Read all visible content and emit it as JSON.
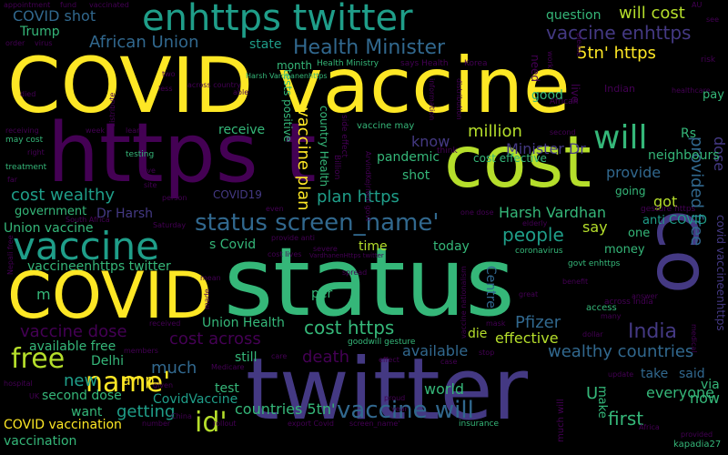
{
  "wordcloud": {
    "colors": {
      "yellow": "#fde725",
      "lime": "#b5de2b",
      "green": "#35b779",
      "teal": "#1f9e89",
      "blue": "#31688e",
      "indigo": "#443983",
      "purple": "#440154",
      "background": "#000000"
    },
    "words": [
      {
        "text": "COVID vaccine",
        "color": "yellow"
      },
      {
        "text": "https t",
        "color": "purple"
      },
      {
        "text": "status",
        "color": "green"
      },
      {
        "text": "twitter",
        "color": "indigo"
      },
      {
        "text": "cost",
        "color": "lime"
      },
      {
        "text": "co",
        "color": "indigo"
      },
      {
        "text": "COVID",
        "color": "yellow"
      },
      {
        "text": "enhttps twitter",
        "color": "teal"
      },
      {
        "text": "vaccine",
        "color": "teal"
      },
      {
        "text": "free",
        "color": "lime"
      },
      {
        "text": "will",
        "color": "green"
      },
      {
        "text": "name'",
        "color": "yellow"
      },
      {
        "text": "id'",
        "color": "lime"
      },
      {
        "text": "status screen_name'",
        "color": "blue"
      },
      {
        "text": "vaccine will",
        "color": "blue"
      },
      {
        "text": "Health Minister",
        "color": "blue"
      },
      {
        "text": "vaccine enhttps",
        "color": "indigo"
      },
      {
        "text": "5tn' https",
        "color": "yellow"
      },
      {
        "text": "will cost",
        "color": "lime"
      },
      {
        "text": "African Union",
        "color": "blue"
      },
      {
        "text": "COVID shot",
        "color": "blue"
      },
      {
        "text": "cost wealthy",
        "color": "teal"
      },
      {
        "text": "plan https",
        "color": "teal"
      },
      {
        "text": "vaccine plan",
        "color": "yellow"
      },
      {
        "text": "million",
        "color": "lime"
      },
      {
        "text": "know",
        "color": "indigo"
      },
      {
        "text": "Minister Dr",
        "color": "indigo"
      },
      {
        "text": "people",
        "color": "teal"
      },
      {
        "text": "India",
        "color": "indigo"
      },
      {
        "text": "cost https",
        "color": "green"
      },
      {
        "text": "cost across",
        "color": "purple"
      },
      {
        "text": "vaccine dose",
        "color": "purple"
      },
      {
        "text": "Pfizer",
        "color": "blue"
      },
      {
        "text": "wealthy countries",
        "color": "blue"
      },
      {
        "text": "countries 5tn'",
        "color": "green"
      },
      {
        "text": "getting",
        "color": "teal"
      },
      {
        "text": "death",
        "color": "purple"
      },
      {
        "text": "much",
        "color": "blue"
      },
      {
        "text": "new",
        "color": "teal"
      },
      {
        "text": "amp",
        "color": "yellow"
      },
      {
        "text": "provided free",
        "color": "blue"
      },
      {
        "text": "dose",
        "color": "indigo"
      },
      {
        "text": "covid vaccineenhttps",
        "color": "indigo"
      },
      {
        "text": "Union vaccine",
        "color": "green"
      },
      {
        "text": "cost effective",
        "color": "green"
      },
      {
        "text": "Harsh Vardhan",
        "color": "green"
      },
      {
        "text": "say",
        "color": "lime"
      },
      {
        "text": "got",
        "color": "lime"
      },
      {
        "text": "provide",
        "color": "blue"
      },
      {
        "text": "neighbours",
        "color": "green"
      },
      {
        "text": "Rs",
        "color": "green"
      },
      {
        "text": "anti COVID",
        "color": "teal"
      },
      {
        "text": "vaccineenhttps twitter",
        "color": "green"
      },
      {
        "text": "available free",
        "color": "green"
      },
      {
        "text": "Union Health",
        "color": "green"
      },
      {
        "text": "effective",
        "color": "lime"
      },
      {
        "text": "die",
        "color": "lime"
      },
      {
        "text": "available",
        "color": "blue"
      },
      {
        "text": "COVID vaccination",
        "color": "yellow"
      },
      {
        "text": "vaccination",
        "color": "green"
      },
      {
        "text": "second dose",
        "color": "green"
      },
      {
        "text": "CovidVaccine",
        "color": "teal"
      },
      {
        "text": "first",
        "color": "green"
      },
      {
        "text": "everyone",
        "color": "green"
      },
      {
        "text": "now",
        "color": "green"
      },
      {
        "text": "via",
        "color": "green"
      },
      {
        "text": "take",
        "color": "blue"
      },
      {
        "text": "said",
        "color": "blue"
      },
      {
        "text": "world",
        "color": "green"
      },
      {
        "text": "receive",
        "color": "green"
      },
      {
        "text": "pandemic",
        "color": "green"
      },
      {
        "text": "shot",
        "color": "green"
      },
      {
        "text": "month",
        "color": "green"
      },
      {
        "text": "question",
        "color": "green"
      },
      {
        "text": "Trump",
        "color": "green"
      },
      {
        "text": "state",
        "color": "teal"
      },
      {
        "text": "Dr Harsh",
        "color": "indigo"
      },
      {
        "text": "government",
        "color": "green"
      },
      {
        "text": "COVID19",
        "color": "indigo"
      },
      {
        "text": "s Covid",
        "color": "green"
      },
      {
        "text": "time",
        "color": "lime"
      },
      {
        "text": "today",
        "color": "green"
      },
      {
        "text": "per",
        "color": "green"
      },
      {
        "text": "money",
        "color": "green"
      },
      {
        "text": "one",
        "color": "green"
      },
      {
        "text": "Centre",
        "color": "blue"
      },
      {
        "text": "good",
        "color": "green"
      },
      {
        "text": "going",
        "color": "green"
      },
      {
        "text": "Delhi",
        "color": "green"
      },
      {
        "text": "test",
        "color": "green"
      },
      {
        "text": "still",
        "color": "green"
      },
      {
        "text": "want",
        "color": "green"
      },
      {
        "text": "U",
        "color": "green"
      },
      {
        "text": "make",
        "color": "green"
      },
      {
        "text": "kapadia27",
        "color": "green"
      },
      {
        "text": "m",
        "color": "green"
      },
      {
        "text": "appointment",
        "color": "purple"
      },
      {
        "text": "vaccinated",
        "color": "purple"
      },
      {
        "text": "fund",
        "color": "purple"
      },
      {
        "text": "order",
        "color": "purple"
      },
      {
        "text": "virus",
        "color": "purple"
      },
      {
        "text": "Health Ministry",
        "color": "green"
      },
      {
        "text": "says Health",
        "color": "purple"
      },
      {
        "text": "Korea",
        "color": "purple"
      },
      {
        "text": "Indian",
        "color": "purple"
      },
      {
        "text": "risk",
        "color": "purple"
      },
      {
        "text": "healthcare",
        "color": "purple"
      },
      {
        "text": "two",
        "color": "purple"
      },
      {
        "text": "less",
        "color": "purple"
      },
      {
        "text": "across country",
        "color": "purple"
      },
      {
        "text": "able",
        "color": "purple"
      },
      {
        "text": "Harsh Vardhanenhttps",
        "color": "green"
      },
      {
        "text": "tests positive",
        "color": "green"
      },
      {
        "text": "country Health",
        "color": "green"
      },
      {
        "text": "side effect",
        "color": "purple"
      },
      {
        "text": "Billion",
        "color": "purple"
      },
      {
        "text": "vaccine may",
        "color": "green"
      },
      {
        "text": "information",
        "color": "purple"
      },
      {
        "text": "distribution",
        "color": "purple"
      },
      {
        "text": "think",
        "color": "purple"
      },
      {
        "text": "second",
        "color": "purple"
      },
      {
        "text": "need",
        "color": "purple"
      },
      {
        "text": "live",
        "color": "purple"
      },
      {
        "text": "African",
        "color": "purple"
      },
      {
        "text": "gesture https",
        "color": "purple"
      },
      {
        "text": "pay",
        "color": "green"
      },
      {
        "text": "died",
        "color": "purple"
      },
      {
        "text": "distribute",
        "color": "purple"
      },
      {
        "text": "week",
        "color": "purple"
      },
      {
        "text": "learn",
        "color": "purple"
      },
      {
        "text": "receiving",
        "color": "purple"
      },
      {
        "text": "may cost",
        "color": "green"
      },
      {
        "text": "right",
        "color": "purple"
      },
      {
        "text": "testing",
        "color": "green"
      },
      {
        "text": "treatment",
        "color": "green"
      },
      {
        "text": "far",
        "color": "purple"
      },
      {
        "text": "give",
        "color": "purple"
      },
      {
        "text": "site",
        "color": "purple"
      },
      {
        "text": "person",
        "color": "purple"
      },
      {
        "text": "ArvindKejriwal govt",
        "color": "purple"
      },
      {
        "text": "one dose",
        "color": "purple"
      },
      {
        "text": "elderly",
        "color": "purple"
      },
      {
        "text": "even",
        "color": "purple"
      },
      {
        "text": "South Africa",
        "color": "purple"
      },
      {
        "text": "Saturday",
        "color": "purple"
      },
      {
        "text": "provide anti",
        "color": "purple"
      },
      {
        "text": "coronavirus",
        "color": "green"
      },
      {
        "text": "severe",
        "color": "purple"
      },
      {
        "text": "cost lives",
        "color": "purple"
      },
      {
        "text": "VardhanenHttps twitter",
        "color": "purple"
      },
      {
        "text": "govt enhttps",
        "color": "green"
      },
      {
        "text": "across India",
        "color": "purple"
      },
      {
        "text": "benefit",
        "color": "purple"
      },
      {
        "text": "Nepali free",
        "color": "purple"
      },
      {
        "text": "mean",
        "color": "purple"
      },
      {
        "text": "made",
        "color": "purple"
      },
      {
        "text": "spread",
        "color": "purple"
      },
      {
        "text": "great",
        "color": "purple"
      },
      {
        "text": "answer",
        "color": "purple"
      },
      {
        "text": "access",
        "color": "green"
      },
      {
        "text": "many",
        "color": "purple"
      },
      {
        "text": "received",
        "color": "purple"
      },
      {
        "text": "members",
        "color": "purple"
      },
      {
        "text": "goodwill gesture",
        "color": "green"
      },
      {
        "text": "vaccine nationalism",
        "color": "purple"
      },
      {
        "text": "mask",
        "color": "purple"
      },
      {
        "text": "dollar",
        "color": "purple"
      },
      {
        "text": "medical",
        "color": "purple"
      },
      {
        "text": "update",
        "color": "purple"
      },
      {
        "text": "hospital",
        "color": "purple"
      },
      {
        "text": "given",
        "color": "purple"
      },
      {
        "text": "Medicare",
        "color": "purple"
      },
      {
        "text": "effect",
        "color": "purple"
      },
      {
        "text": "care",
        "color": "purple"
      },
      {
        "text": "stop",
        "color": "purple"
      },
      {
        "text": "case",
        "color": "purple"
      },
      {
        "text": "proud",
        "color": "purple"
      },
      {
        "text": "year",
        "color": "purple"
      },
      {
        "text": "UK",
        "color": "purple"
      },
      {
        "text": "number",
        "color": "purple"
      },
      {
        "text": "China",
        "color": "purple"
      },
      {
        "text": "rollout",
        "color": "purple"
      },
      {
        "text": "export Covid",
        "color": "purple"
      },
      {
        "text": "screen_name'",
        "color": "purple"
      },
      {
        "text": "insurance",
        "color": "green"
      },
      {
        "text": "much will",
        "color": "purple"
      },
      {
        "text": "Africa",
        "color": "purple"
      },
      {
        "text": "provided",
        "color": "purple"
      },
      {
        "text": "please",
        "color": "purple"
      },
      {
        "text": "work",
        "color": "purple"
      },
      {
        "text": "AU",
        "color": "purple"
      },
      {
        "text": "see",
        "color": "purple"
      }
    ]
  }
}
